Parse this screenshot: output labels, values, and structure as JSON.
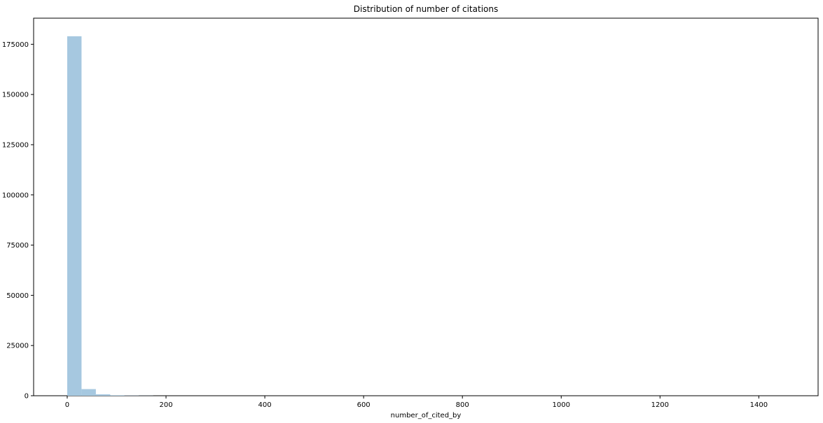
{
  "chart_data": {
    "type": "bar",
    "title": "Distribution of number of citations",
    "xlabel": "number_of_cited_by",
    "ylabel": "",
    "xlim": [
      -68,
      1520
    ],
    "ylim": [
      0,
      188000
    ],
    "xticks": [
      0,
      200,
      400,
      600,
      800,
      1000,
      1200,
      1400
    ],
    "yticks": [
      0,
      25000,
      50000,
      75000,
      100000,
      125000,
      150000,
      175000
    ],
    "grid": false,
    "bar_color": "#a6c8e0",
    "bins": [
      {
        "x0": 0,
        "x1": 29,
        "value": 179000
      },
      {
        "x0": 29,
        "x1": 58,
        "value": 3300
      },
      {
        "x0": 58,
        "x1": 87,
        "value": 700
      },
      {
        "x0": 87,
        "x1": 116,
        "value": 250
      },
      {
        "x0": 116,
        "x1": 145,
        "value": 100
      },
      {
        "x0": 145,
        "x1": 174,
        "value": 50
      }
    ]
  }
}
